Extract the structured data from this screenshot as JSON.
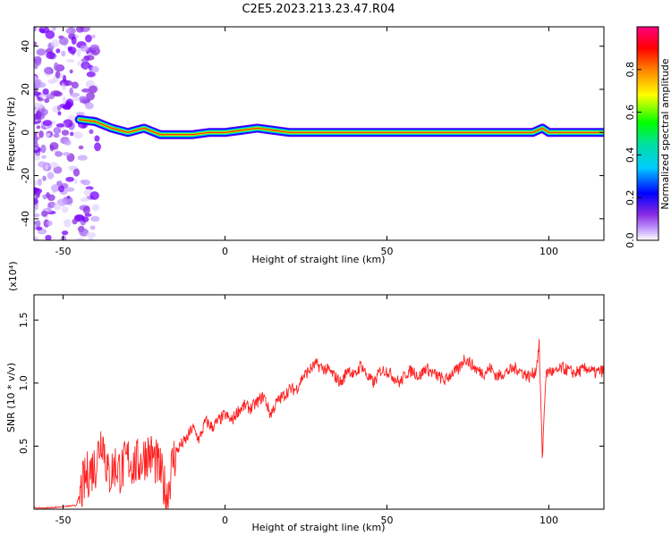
{
  "title": "C2E5.2023.213.23.47.R04",
  "chart_data": [
    {
      "type": "heatmap",
      "xlabel": "Height of straight line (km)",
      "ylabel": "Frequency (Hz)",
      "xlim": [
        -59,
        117
      ],
      "ylim": [
        -50,
        49
      ],
      "xticks": [
        -50,
        0,
        50,
        100
      ],
      "yticks": [
        -40,
        -20,
        0,
        20,
        40
      ],
      "colorbar": {
        "label": "Normalized spectral amplitude",
        "ticks": [
          0.0,
          0.2,
          0.4,
          0.6,
          0.8
        ],
        "range": [
          0,
          1
        ]
      },
      "signal_track": [
        [
          -45,
          6
        ],
        [
          -40,
          5
        ],
        [
          -35,
          2
        ],
        [
          -30,
          0
        ],
        [
          -25,
          2
        ],
        [
          -20,
          -1
        ],
        [
          -15,
          -1
        ],
        [
          -10,
          -1
        ],
        [
          -5,
          0
        ],
        [
          0,
          0
        ],
        [
          5,
          1
        ],
        [
          10,
          2
        ],
        [
          15,
          1
        ],
        [
          20,
          0
        ],
        [
          60,
          0
        ],
        [
          95,
          0
        ],
        [
          98,
          2
        ],
        [
          100,
          0
        ],
        [
          117,
          0
        ]
      ]
    },
    {
      "type": "line",
      "xlabel": "Height of straight line (km)",
      "ylabel": "SNR (10 * v/v)",
      "multiplier": "(x10⁴)",
      "xlim": [
        -59,
        117
      ],
      "ylim": [
        0,
        1.7
      ],
      "xticks": [
        -50,
        0,
        50,
        100
      ],
      "yticks": [
        0.5,
        1.0,
        1.5
      ],
      "color": "#ff2020",
      "x": [
        -59,
        -55,
        -50,
        -46,
        -44,
        -42,
        -40,
        -38,
        -36,
        -34,
        -32,
        -30,
        -28,
        -26,
        -24,
        -22,
        -20,
        -18,
        -16,
        -14,
        -12,
        -10,
        -8,
        -6,
        -4,
        -2,
        0,
        2,
        4,
        6,
        8,
        10,
        12,
        14,
        16,
        18,
        20,
        22,
        24,
        26,
        28,
        30,
        32,
        34,
        36,
        38,
        40,
        42,
        44,
        46,
        48,
        50,
        52,
        54,
        56,
        58,
        60,
        62,
        64,
        66,
        68,
        70,
        72,
        74,
        76,
        78,
        80,
        82,
        84,
        86,
        88,
        90,
        92,
        94,
        96,
        97,
        98,
        99,
        100,
        102,
        104,
        106,
        108,
        110,
        112,
        114,
        117
      ],
      "y": [
        0.01,
        0.01,
        0.02,
        0.03,
        0.18,
        0.3,
        0.35,
        0.6,
        0.25,
        0.35,
        0.3,
        0.4,
        0.35,
        0.38,
        0.45,
        0.4,
        0.3,
        0.1,
        0.4,
        0.5,
        0.55,
        0.65,
        0.55,
        0.7,
        0.65,
        0.7,
        0.75,
        0.7,
        0.78,
        0.82,
        0.8,
        0.85,
        0.9,
        0.75,
        0.85,
        0.9,
        0.95,
        0.95,
        1.05,
        1.1,
        1.15,
        1.12,
        1.1,
        1.05,
        1.0,
        1.12,
        1.05,
        1.15,
        1.05,
        1.0,
        1.1,
        1.1,
        1.05,
        1.0,
        1.08,
        1.1,
        1.05,
        1.12,
        1.08,
        1.05,
        1.02,
        1.08,
        1.1,
        1.2,
        1.15,
        1.1,
        1.08,
        1.12,
        1.05,
        1.08,
        1.1,
        1.12,
        1.08,
        1.05,
        1.1,
        1.3,
        0.4,
        1.05,
        1.1,
        1.08,
        1.12,
        1.1,
        1.08,
        1.1,
        1.12,
        1.08,
        1.1
      ]
    }
  ]
}
